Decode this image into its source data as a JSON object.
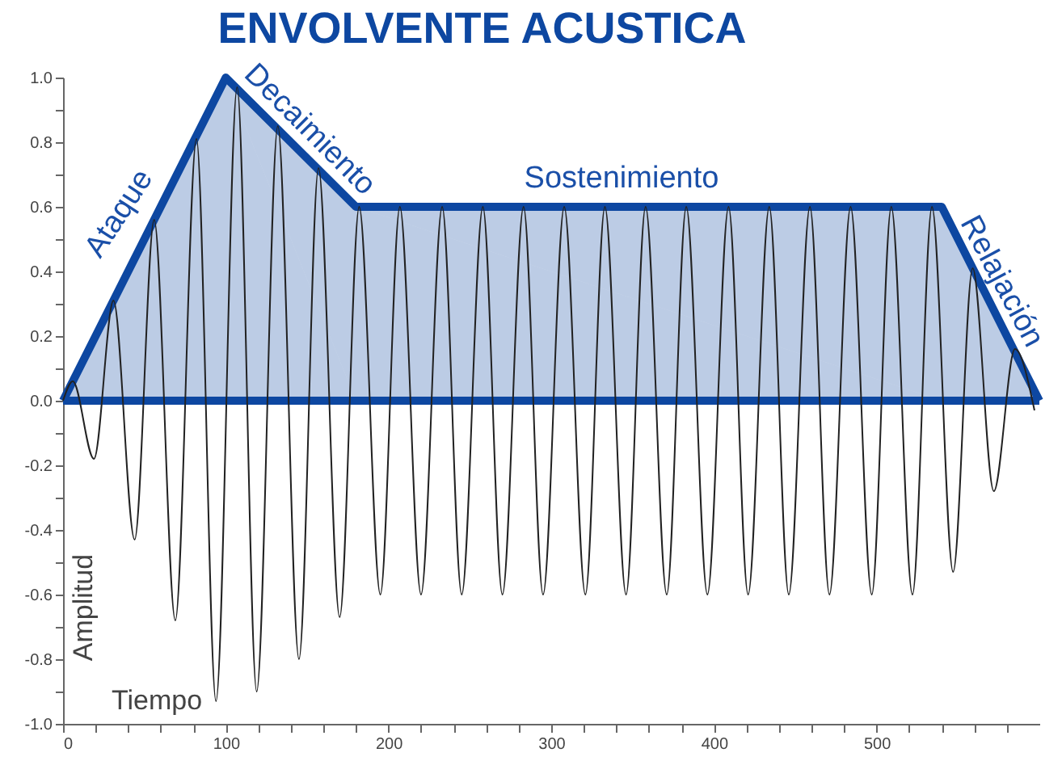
{
  "chart_data": {
    "type": "line",
    "title": "ENVOLVENTE ACUSTICA",
    "xlabel": "Tiempo",
    "ylabel": "Amplitud",
    "series": [
      {
        "type": "area",
        "color": "#0d47a1",
        "x": [
          0,
          100,
          180,
          540,
          600
        ],
        "values": [
          0,
          1.0,
          0.6,
          0.6,
          0
        ]
      },
      {
        "color": "#222222",
        "x": [
          0,
          6,
          19,
          31,
          44,
          56,
          69,
          82,
          94,
          107,
          119,
          132,
          145,
          157,
          170,
          182,
          195,
          207,
          220,
          233,
          245,
          258,
          270,
          283,
          295,
          308,
          321,
          333,
          346,
          358,
          371,
          383,
          396,
          409,
          421,
          434,
          446,
          459,
          471,
          484,
          497,
          509,
          522,
          534,
          547,
          559,
          572,
          585,
          597
        ],
        "values": [
          0,
          0.06,
          -0.18,
          0.31,
          -0.43,
          0.56,
          -0.68,
          0.81,
          -0.93,
          0.97,
          -0.9,
          0.85,
          -0.8,
          0.72,
          -0.67,
          0.6,
          -0.6,
          0.6,
          -0.6,
          0.6,
          -0.6,
          0.6,
          -0.6,
          0.6,
          -0.6,
          0.6,
          -0.6,
          0.6,
          -0.6,
          0.6,
          -0.6,
          0.6,
          -0.6,
          0.6,
          -0.6,
          0.6,
          -0.6,
          0.6,
          -0.6,
          0.6,
          -0.6,
          0.6,
          -0.6,
          0.6,
          -0.53,
          0.41,
          -0.28,
          0.16,
          -0.03
        ]
      }
    ],
    "xlim": [
      0,
      600
    ],
    "xticks": [
      0,
      {
        "value": 20,
        "label": null
      },
      {
        "value": 40,
        "label": null
      },
      {
        "value": 60,
        "label": null
      },
      {
        "value": 80,
        "label": null
      },
      100,
      {
        "value": 120,
        "label": null
      },
      {
        "value": 140,
        "label": null
      },
      {
        "value": 160,
        "label": null
      },
      {
        "value": 180,
        "label": null
      },
      200,
      {
        "value": 220,
        "label": null
      },
      {
        "value": 240,
        "label": null
      },
      {
        "value": 260,
        "label": null
      },
      {
        "value": 280,
        "label": null
      },
      300,
      {
        "value": 320,
        "label": null
      },
      {
        "value": 340,
        "label": null
      },
      {
        "value": 360,
        "label": null
      },
      {
        "value": 380,
        "label": null
      },
      400,
      {
        "value": 420,
        "label": null
      },
      {
        "value": 440,
        "label": null
      },
      {
        "value": 460,
        "label": null
      },
      {
        "value": 480,
        "label": null
      },
      500,
      {
        "value": 520,
        "label": null
      },
      {
        "value": 540,
        "label": null
      },
      {
        "value": 560,
        "label": null
      },
      {
        "value": 580,
        "label": null
      }
    ],
    "ylim": [
      -1.0,
      1.0
    ],
    "yticks": [
      {
        "value": -1.0,
        "label": "-1.0"
      },
      {
        "value": -0.9,
        "label": null
      },
      {
        "value": -0.8,
        "label": "-0.8"
      },
      {
        "value": -0.7,
        "label": null
      },
      {
        "value": -0.6,
        "label": "-0.6"
      },
      {
        "value": -0.5,
        "label": null
      },
      {
        "value": -0.4,
        "label": "-0.4"
      },
      {
        "value": -0.3,
        "label": null
      },
      {
        "value": -0.2,
        "label": "-0.2"
      },
      {
        "value": -0.1,
        "label": null
      },
      {
        "value": 0,
        "label": "0.0"
      },
      {
        "value": 0.1,
        "label": null
      },
      {
        "value": 0.2,
        "label": "0.2"
      },
      {
        "value": 0.3,
        "label": null
      },
      {
        "value": 0.4,
        "label": "0.4"
      },
      {
        "value": 0.5,
        "label": null
      },
      {
        "value": 0.6,
        "label": "0.6"
      },
      {
        "value": 0.7,
        "label": null
      },
      {
        "value": 0.8,
        "label": "0.8"
      },
      {
        "value": 0.9,
        "label": null
      },
      {
        "value": 1.0,
        "label": "1.0"
      }
    ],
    "annotations": [
      "Ataque",
      "Decaimiento",
      "Sostenimiento",
      "Relajación"
    ],
    "grid": false,
    "marker": "none",
    "line_style": "solid"
  }
}
